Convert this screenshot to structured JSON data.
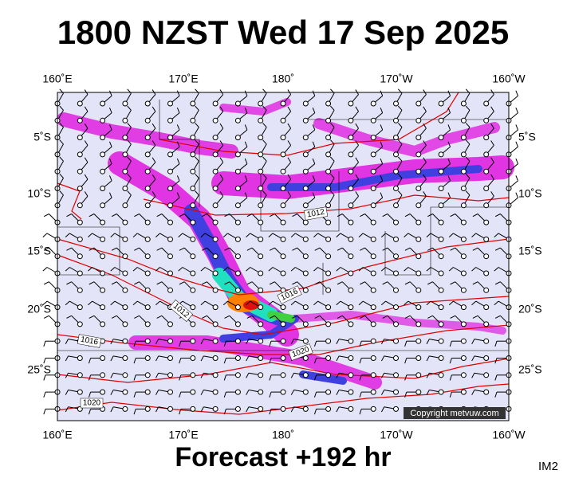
{
  "header": {
    "title": "1800 NZST Wed 17 Sep 2025"
  },
  "map": {
    "lon_labels": [
      "160˚E",
      "170˚E",
      "180˚",
      "170˚W",
      "160˚W"
    ],
    "lat_labels": [
      "5˚S",
      "10˚S",
      "15˚S",
      "20˚S",
      "25˚S"
    ],
    "contour_labels": [
      "1012",
      "1016",
      "1012",
      "1016",
      "1020",
      "1020"
    ],
    "credit": "Copyright metvuw.com"
  },
  "footer": {
    "forecast": "Forecast +192 hr",
    "code": "IM2"
  }
}
